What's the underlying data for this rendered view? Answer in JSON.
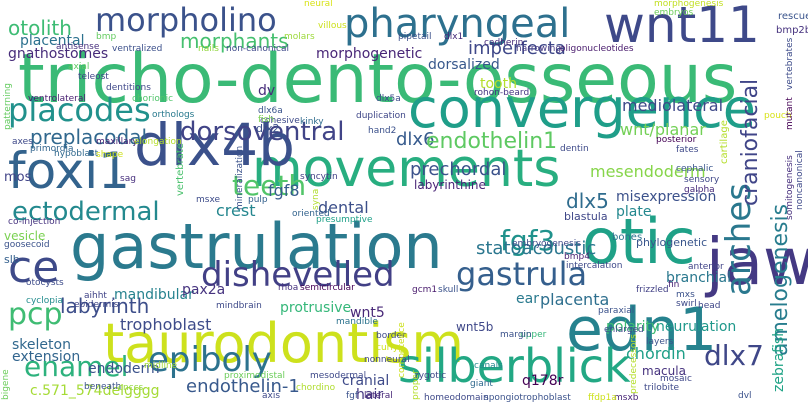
{
  "words": [
    {
      "text": "tricho-dento-osseous",
      "color": "#3aba76"
    },
    {
      "text": "gastrulation",
      "color": "#2b7a8e"
    },
    {
      "text": "taurodontism",
      "color": "#cde11d"
    },
    {
      "text": "convergence",
      "color": "#1f9e89"
    },
    {
      "text": "movements",
      "color": "#28ae80"
    },
    {
      "text": "dlx4b",
      "color": "#3b518b"
    },
    {
      "text": "wnt11",
      "color": "#3e4989"
    },
    {
      "text": "pharyngeal",
      "color": "#2d708e"
    },
    {
      "text": "morpholino",
      "color": "#3b528b"
    },
    {
      "text": "otic",
      "color": "#1fa187"
    },
    {
      "text": "edn1",
      "color": "#26828e"
    },
    {
      "text": "jaw",
      "color": "#443983"
    },
    {
      "text": "foxi1",
      "color": "#33638d"
    },
    {
      "text": "silberblick",
      "color": "#22a884"
    },
    {
      "text": "epiboly",
      "color": "#2c728e"
    },
    {
      "text": "ce",
      "color": "#3e4a89"
    },
    {
      "text": "dishevelled",
      "color": "#424086"
    },
    {
      "text": "gastrula",
      "color": "#355f8d"
    },
    {
      "text": "placodes",
      "color": "#21918c"
    },
    {
      "text": "dorsoventral",
      "color": "#414487"
    },
    {
      "text": "teeth",
      "color": "#52c569"
    },
    {
      "text": "arches",
      "color": "#2a788e"
    },
    {
      "text": "pcp",
      "color": "#3fbc73"
    },
    {
      "text": "fgf3",
      "color": "#20928c"
    },
    {
      "text": "enamel",
      "color": "#2db27d"
    },
    {
      "text": "ectodermal",
      "color": "#23898e"
    },
    {
      "text": "labyrinth",
      "color": "#3d4e8a"
    },
    {
      "text": "dlx7",
      "color": "#3f4788"
    },
    {
      "text": "dlx6",
      "color": "#375b8d"
    },
    {
      "text": "dlx5",
      "color": "#2f6c8e"
    },
    {
      "text": "endothelin1",
      "color": "#5ec962"
    },
    {
      "text": "preplacodal",
      "color": "#31688e"
    },
    {
      "text": "otolith",
      "color": "#3dbc74"
    },
    {
      "text": "morphants",
      "color": "#46c06f"
    },
    {
      "text": "imperfecta",
      "color": "#3f4889"
    },
    {
      "text": "wnt/planar",
      "color": "#73d056"
    },
    {
      "text": "endothelin-1",
      "color": "#38598c"
    },
    {
      "text": "amelogenesis",
      "color": "#287d8e"
    },
    {
      "text": "craniofacial",
      "color": "#404588"
    },
    {
      "text": "statoacoustic",
      "color": "#2a768e"
    },
    {
      "text": "mesendoderm",
      "color": "#86d549"
    },
    {
      "text": "prechordal",
      "color": "#3b528b"
    },
    {
      "text": "trophoblast",
      "color": "#3e4c8a"
    },
    {
      "text": "placenta",
      "color": "#2e6f8e"
    },
    {
      "text": "mandibular",
      "color": "#26828e"
    },
    {
      "text": "crest",
      "color": "#24868e"
    },
    {
      "text": "fgf8",
      "color": "#365c8d"
    },
    {
      "text": "dental",
      "color": "#3c4f8a"
    },
    {
      "text": "mediolateral",
      "color": "#3e4989"
    },
    {
      "text": "chordin",
      "color": "#1f9f88"
    },
    {
      "text": "neurulation",
      "color": "#1f988b"
    },
    {
      "text": "c.571_574delgggg",
      "color": "#a5db36"
    },
    {
      "text": "skeleton",
      "color": "#31688e"
    },
    {
      "text": "extension",
      "color": "#32658e"
    },
    {
      "text": "pax2a",
      "color": "#46337f"
    },
    {
      "text": "placental",
      "color": "#2c718e"
    },
    {
      "text": "gnathostomes",
      "color": "#472c7a"
    },
    {
      "text": "dorsalized",
      "color": "#38588c"
    },
    {
      "text": "plate",
      "color": "#23888e"
    },
    {
      "text": "branchial",
      "color": "#2a788e"
    },
    {
      "text": "polarity",
      "color": "#3fbc73"
    },
    {
      "text": "ear",
      "color": "#297a8e"
    },
    {
      "text": "zebrafish",
      "color": "#20a386"
    },
    {
      "text": "cranial",
      "color": "#3e4a89"
    },
    {
      "text": "hair",
      "color": "#453781"
    },
    {
      "text": "misexpression",
      "color": "#3b518b"
    },
    {
      "text": "protrusive",
      "color": "#35b779"
    },
    {
      "text": "morphogenetic",
      "color": "#482677"
    },
    {
      "text": "wnt5",
      "color": "#482878"
    },
    {
      "text": "tooth",
      "color": "#b5de2b"
    },
    {
      "text": "dv",
      "color": "#472d7b"
    },
    {
      "text": "q178r",
      "color": "#440154"
    },
    {
      "text": "endoderm",
      "color": "#3b528b"
    },
    {
      "text": "labyrinthine",
      "color": "#482475"
    },
    {
      "text": "mos",
      "color": "#404387"
    },
    {
      "text": "vesicle",
      "color": "#7ad151"
    },
    {
      "text": "slb",
      "color": "#34608d"
    },
    {
      "text": "macula",
      "color": "#46327e"
    },
    {
      "text": "wnt5b",
      "color": "#3f4889"
    },
    {
      "text": "blastula",
      "color": "#3f4788"
    },
    {
      "text": "bones",
      "color": "#2c718e"
    },
    {
      "text": "phylogenetic",
      "color": "#39558c"
    },
    {
      "text": "rescue",
      "color": "#3a548c"
    },
    {
      "text": "bmp2b",
      "color": "#46327e"
    },
    {
      "text": "neural",
      "color": "#d8e219"
    },
    {
      "text": "morphogenesis",
      "color": "#c2df23"
    },
    {
      "text": "embryos",
      "color": "#6ccd5a"
    },
    {
      "text": "ventralized",
      "color": "#3c508b"
    },
    {
      "text": "bmp",
      "color": "#63cb5f"
    },
    {
      "text": "antisense",
      "color": "#472f7d"
    },
    {
      "text": "axial",
      "color": "#5ec962"
    },
    {
      "text": "teleost",
      "color": "#3f4788"
    },
    {
      "text": "nails",
      "color": "#93d741"
    },
    {
      "text": "molars",
      "color": "#9dd93b"
    },
    {
      "text": "non-canonical",
      "color": "#3e4989"
    },
    {
      "text": "narrowing",
      "color": "#453882"
    },
    {
      "text": "oligonucleotides",
      "color": "#481a6c"
    },
    {
      "text": "pipetail",
      "color": "#3b528b"
    },
    {
      "text": "dlx1",
      "color": "#472a7a"
    },
    {
      "text": "villous",
      "color": "#cde11d"
    },
    {
      "text": "ventrolateral",
      "color": "#481f70"
    },
    {
      "text": "chorionic",
      "color": "#50c46a"
    },
    {
      "text": "dentitions",
      "color": "#3f4889"
    },
    {
      "text": "rohon-beard",
      "color": "#453581"
    },
    {
      "text": "dlx6a",
      "color": "#3a548c"
    },
    {
      "text": "cohesive",
      "color": "#3e4a89"
    },
    {
      "text": "dlx5a",
      "color": "#3d4d8a"
    },
    {
      "text": "duplication",
      "color": "#3f4788"
    },
    {
      "text": "hand2",
      "color": "#3b518b"
    },
    {
      "text": "orthologs",
      "color": "#297a8e"
    },
    {
      "text": "fish",
      "color": "#7ad151"
    },
    {
      "text": "dlx2",
      "color": "#3b518b"
    },
    {
      "text": "kinky",
      "color": "#2f6c8e"
    },
    {
      "text": "axes",
      "color": "#3e4989"
    },
    {
      "text": "primordia",
      "color": "#32658e"
    },
    {
      "text": "maxillary",
      "color": "#482576"
    },
    {
      "text": "hypoblast",
      "color": "#30698e"
    },
    {
      "text": "elongation",
      "color": "#b5de2b"
    },
    {
      "text": "shape",
      "color": "#cde11d"
    },
    {
      "text": "vertebrate",
      "color": "#4ac16d"
    },
    {
      "text": "mineralization",
      "color": "#3b528b"
    },
    {
      "text": "syncytin",
      "color": "#424186"
    },
    {
      "text": "sag",
      "color": "#472f7d"
    },
    {
      "text": "pulp",
      "color": "#34618d"
    },
    {
      "text": "msxe",
      "color": "#3e4c8a"
    },
    {
      "text": "oriented",
      "color": "#33638d"
    },
    {
      "text": "presumptive",
      "color": "#1fa088"
    },
    {
      "text": "syna",
      "color": "#b0dd2f"
    },
    {
      "text": "co-injection",
      "color": "#46337f"
    },
    {
      "text": "goosecoid",
      "color": "#3b528b"
    },
    {
      "text": "otocysts",
      "color": "#3e4c8a"
    },
    {
      "text": "cyclopia",
      "color": "#228c8d"
    },
    {
      "text": "epidermis",
      "color": "#3f4788"
    },
    {
      "text": "aihht",
      "color": "#404387"
    },
    {
      "text": "mindbrain",
      "color": "#3e4a89"
    },
    {
      "text": "rhoa",
      "color": "#46327e"
    },
    {
      "text": "semicircular",
      "color": "#440154"
    },
    {
      "text": "gcm1",
      "color": "#481a6c"
    },
    {
      "text": "mandible",
      "color": "#2c738e"
    },
    {
      "text": "skull",
      "color": "#3b528b"
    },
    {
      "text": "frizzled",
      "color": "#424186"
    },
    {
      "text": "embryogenesis",
      "color": "#3e4989"
    },
    {
      "text": "bmp4",
      "color": "#481f70"
    },
    {
      "text": "midline",
      "color": "#a0da39"
    },
    {
      "text": "proximodistal",
      "color": "#6ccd5a"
    },
    {
      "text": "mesodermal",
      "color": "#3e4989"
    },
    {
      "text": "zygotic",
      "color": "#3f4788"
    },
    {
      "text": "giant",
      "color": "#30698e"
    },
    {
      "text": "canals",
      "color": "#23898e"
    },
    {
      "text": "layers",
      "color": "#3b528b"
    },
    {
      "text": "border",
      "color": "#3e4a89"
    },
    {
      "text": "competence",
      "color": "#cde11d"
    },
    {
      "text": "paraxial",
      "color": "#3b528b"
    },
    {
      "text": "enlarged",
      "color": "#3e4c8a"
    },
    {
      "text": "upper",
      "color": "#35b779"
    },
    {
      "text": "margin",
      "color": "#3b528b"
    },
    {
      "text": "cadherin",
      "color": "#472c7a"
    },
    {
      "text": "intercalation",
      "color": "#3e4989"
    },
    {
      "text": "fin",
      "color": "#482475"
    },
    {
      "text": "mxs",
      "color": "#3b528b"
    },
    {
      "text": "head",
      "color": "#3f4788"
    },
    {
      "text": "swirl",
      "color": "#3e4a89"
    },
    {
      "text": "anterior",
      "color": "#404387"
    },
    {
      "text": "cephalic",
      "color": "#39558c"
    },
    {
      "text": "galpha",
      "color": "#472a7a"
    },
    {
      "text": "fates",
      "color": "#3e4989"
    },
    {
      "text": "sensory",
      "color": "#3f4788"
    },
    {
      "text": "posterior",
      "color": "#440154"
    },
    {
      "text": "pouch",
      "color": "#d8e219"
    },
    {
      "text": "cartilage",
      "color": "#b5de2b"
    },
    {
      "text": "bigene",
      "color": "#6ccd5a"
    },
    {
      "text": "beneath",
      "color": "#3b528b"
    },
    {
      "text": "patterning",
      "color": "#63cb5f"
    },
    {
      "text": "cnccs",
      "color": "#93d741"
    },
    {
      "text": "axis",
      "color": "#3e4989"
    },
    {
      "text": "nonneural",
      "color": "#3f4788"
    },
    {
      "text": "fgf",
      "color": "#3b528b"
    },
    {
      "text": "lateral",
      "color": "#482878"
    },
    {
      "text": "chordino",
      "color": "#b0dd2f"
    },
    {
      "text": "proper",
      "color": "#b5de2b"
    },
    {
      "text": "homeodomain",
      "color": "#3e4989"
    },
    {
      "text": "spongiotrophoblast",
      "color": "#3b528b"
    },
    {
      "text": "msxb",
      "color": "#482576"
    },
    {
      "text": "curly",
      "color": "#cde11d"
    },
    {
      "text": "ffdp1a",
      "color": "#cde11d"
    },
    {
      "text": "mosaic",
      "color": "#3f4788"
    },
    {
      "text": "trilobite",
      "color": "#3e4989"
    },
    {
      "text": "dvl",
      "color": "#3b528b"
    },
    {
      "text": "predecessors",
      "color": "#b5de2b"
    },
    {
      "text": "vertebrates",
      "color": "#3e4c8a"
    },
    {
      "text": "somitogenesis",
      "color": "#472f7d"
    },
    {
      "text": "noncanonical",
      "color": "#3e4989"
    },
    {
      "text": "mutant",
      "color": "#440154"
    },
    {
      "text": "dentin",
      "color": "#3e4a89"
    }
  ]
}
